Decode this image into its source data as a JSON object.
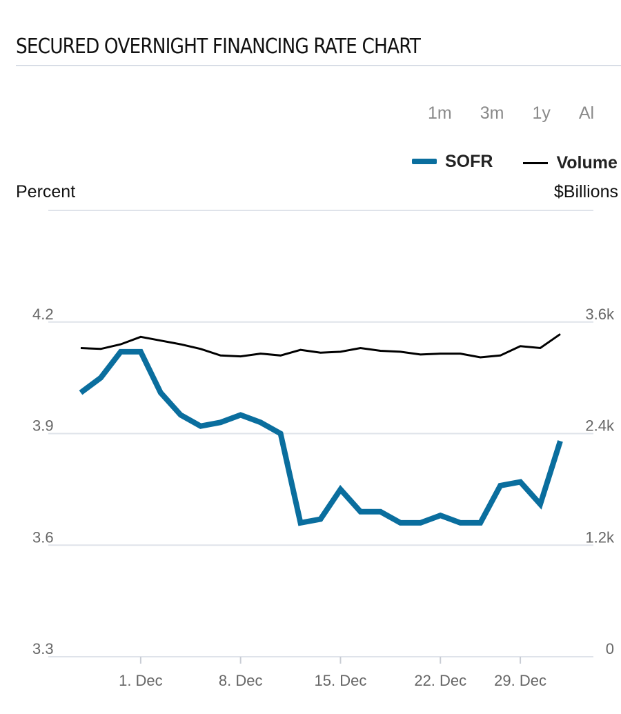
{
  "title": "SECURED OVERNIGHT FINANCING RATE CHART",
  "ranges": [
    "1m",
    "3m",
    "1y",
    "Al"
  ],
  "legend": {
    "sofr": "SOFR",
    "volume": "Volume"
  },
  "colors": {
    "sofr": "#0a6e9e",
    "volume": "#000000",
    "grid": "#dfe3ea",
    "tick": "#666666"
  },
  "chart_data": {
    "type": "line",
    "title": "SECURED OVERNIGHT FINANCING RATE CHART",
    "ylabel_left": "Percent",
    "ylabel_right": "$Billions",
    "ylim_left": [
      3.3,
      4.5
    ],
    "ylim_right": [
      0,
      4.8
    ],
    "yticks_left": [
      3.3,
      3.6,
      3.9,
      4.2
    ],
    "yticks_left_labels": [
      "3.3",
      "3.6",
      "3.9",
      "4.2"
    ],
    "yticks_right_labels": [
      "0",
      "1.2k",
      "2.4k",
      "3.6k"
    ],
    "xticks": [
      {
        "label": "1. Dec",
        "index": 3
      },
      {
        "label": "8. Dec",
        "index": 8
      },
      {
        "label": "15. Dec",
        "index": 13
      },
      {
        "label": "22. Dec",
        "index": 18
      },
      {
        "label": "29. Dec",
        "index": 22
      }
    ],
    "n_points": 25,
    "series": [
      {
        "name": "SOFR",
        "axis": "left",
        "values": [
          4.01,
          4.05,
          4.12,
          4.12,
          4.01,
          3.95,
          3.92,
          3.93,
          3.95,
          3.93,
          3.9,
          3.66,
          3.67,
          3.75,
          3.69,
          3.69,
          3.66,
          3.66,
          3.68,
          3.66,
          3.66,
          3.76,
          3.77,
          3.71,
          3.88
        ]
      },
      {
        "name": "Volume",
        "axis": "right",
        "values": [
          3.32,
          3.31,
          3.36,
          3.44,
          3.4,
          3.36,
          3.31,
          3.24,
          3.23,
          3.26,
          3.24,
          3.3,
          3.27,
          3.28,
          3.32,
          3.29,
          3.28,
          3.25,
          3.26,
          3.26,
          3.22,
          3.24,
          3.34,
          3.32,
          3.47
        ]
      }
    ]
  }
}
